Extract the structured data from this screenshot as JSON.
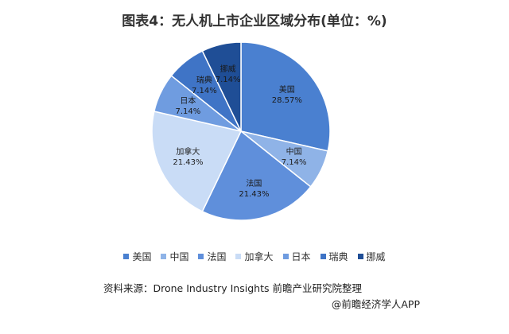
{
  "chart_data": {
    "type": "pie",
    "title": "图表4：无人机上市企业区域分布(单位：%)",
    "slices": [
      {
        "label": "美国",
        "value": 28.57,
        "value_label": "28.57%",
        "color": "#4a80d0"
      },
      {
        "label": "中国",
        "value": 7.14,
        "value_label": "7.14%",
        "color": "#8fb3e7"
      },
      {
        "label": "法国",
        "value": 21.43,
        "value_label": "21.43%",
        "color": "#5f8fdb"
      },
      {
        "label": "加拿大",
        "value": 21.43,
        "value_label": "21.43%",
        "color": "#c9dcf6"
      },
      {
        "label": "日本",
        "value": 7.14,
        "value_label": "7.14%",
        "color": "#6f9ce0"
      },
      {
        "label": "瑞典",
        "value": 7.14,
        "value_label": "7.14%",
        "color": "#3f74c6"
      },
      {
        "label": "挪威",
        "value": 7.14,
        "value_label": "7.14%",
        "color": "#1f4e96"
      }
    ],
    "legend_position": "bottom"
  },
  "footer": {
    "source": "资料来源：Drone Industry Insights 前瞻产业研究院整理",
    "credit": "@前瞻经济学人APP"
  }
}
